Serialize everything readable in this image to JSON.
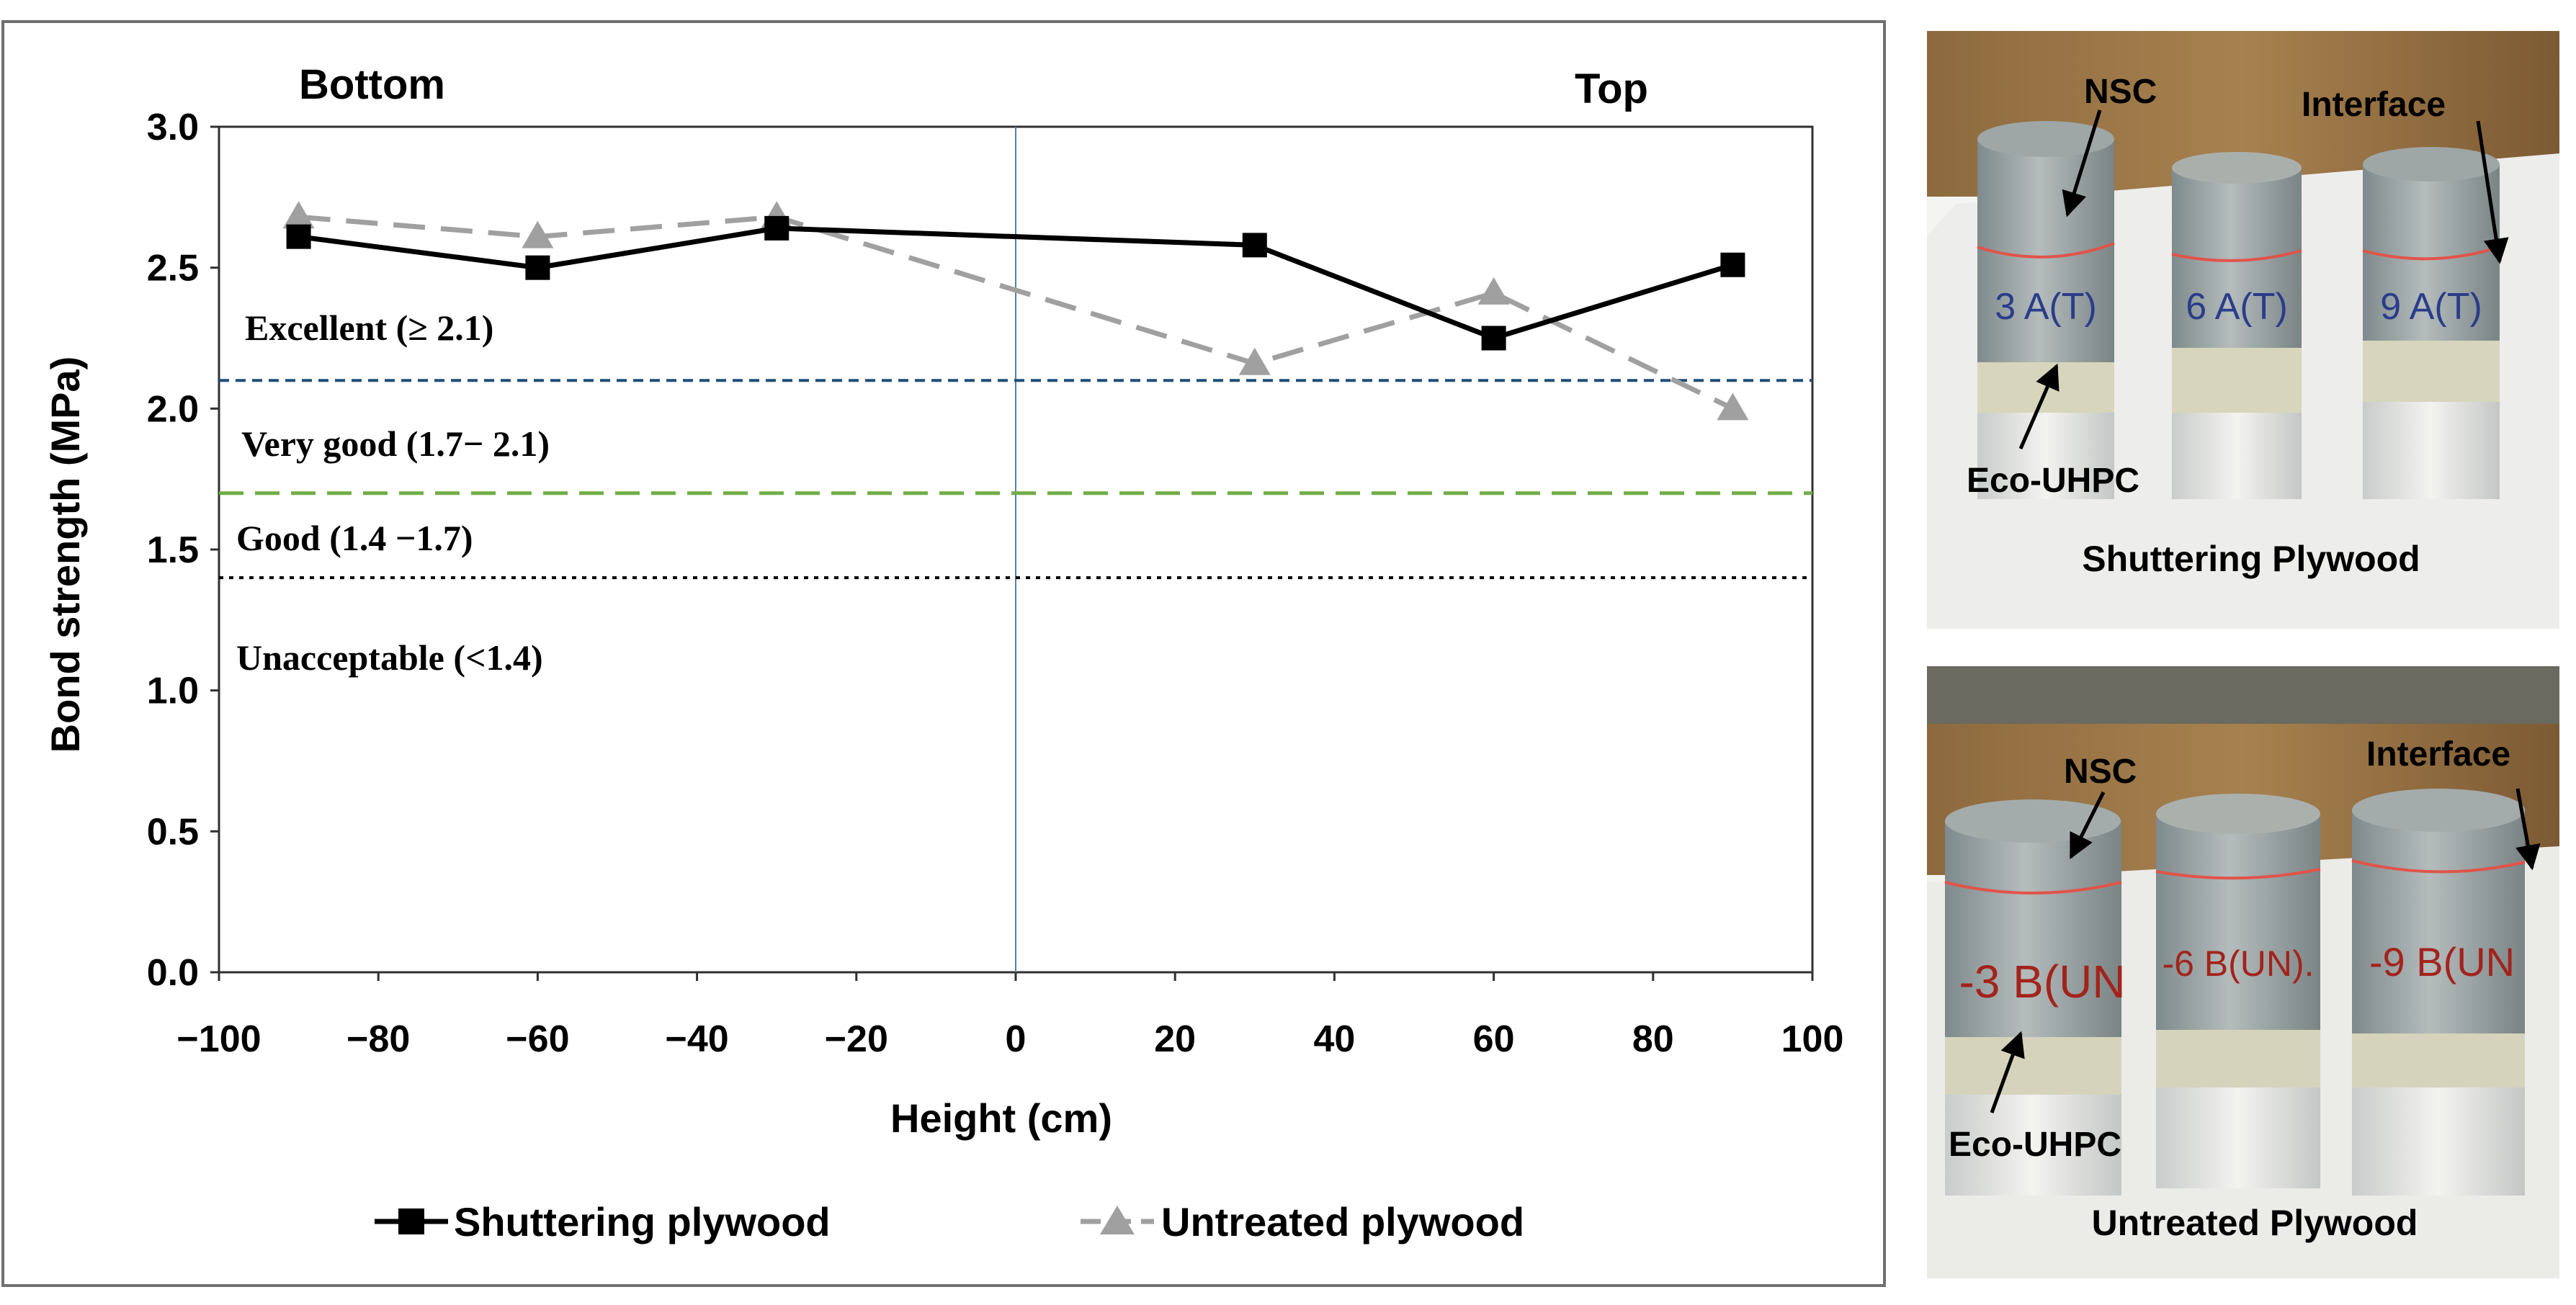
{
  "chart_data": {
    "type": "line",
    "xlabel": "Height (cm)",
    "ylabel": "Bond strength (MPa)",
    "xlim": [
      -100,
      100
    ],
    "ylim": [
      0,
      3
    ],
    "xticks": [
      "−100",
      "−80",
      "−60",
      "−40",
      "−20",
      "0",
      "20",
      "40",
      "60",
      "80",
      "100"
    ],
    "yticks": [
      "0.0",
      "0.5",
      "1.0",
      "1.5",
      "2.0",
      "2.5",
      "3.0"
    ],
    "region_labels": {
      "left": "Bottom",
      "right": "Top"
    },
    "series": [
      {
        "name": "Shuttering plywood",
        "marker": "square",
        "color": "#000000",
        "dash": "solid",
        "x": [
          -90,
          -60,
          -30,
          30,
          60,
          90
        ],
        "values": [
          2.61,
          2.5,
          2.64,
          2.58,
          2.25,
          2.51
        ]
      },
      {
        "name": "Untreated plywood",
        "marker": "triangle",
        "color": "#a0a0a0",
        "dash": "dashed",
        "x": [
          -90,
          -60,
          -30,
          30,
          60,
          90
        ],
        "values": [
          2.68,
          2.61,
          2.68,
          2.16,
          2.41,
          2.0
        ]
      }
    ],
    "thresholds": [
      {
        "value": 2.1,
        "color": "#1f4e79",
        "style": "dashed"
      },
      {
        "value": 1.7,
        "color": "#70ad47",
        "style": "longdash"
      },
      {
        "value": 1.4,
        "color": "#000000",
        "style": "dotted"
      }
    ],
    "category_labels": [
      "Excellent (≥ 2.1)",
      "Very good (1.7− 2.1)",
      "Good (1.4 −1.7)",
      "Unacceptable  (<1.4)"
    ],
    "vertical_line_x": 0,
    "legend_position": "bottom"
  },
  "photos": [
    {
      "title": "Shuttering Plywood",
      "labels": {
        "nsc": "NSC",
        "interface": "Interface",
        "eco": "Eco-UHPC"
      },
      "specimens": [
        "3 A(T)",
        "6 A(T)",
        "9 A(T)"
      ],
      "ink": "#2a3c8a"
    },
    {
      "title": "Untreated Plywood",
      "labels": {
        "nsc": "NSC",
        "interface": "Interface",
        "eco": "Eco-UHPC"
      },
      "specimens": [
        "-3 B(UN",
        "-6 B(UN).",
        "-9 B(UN"
      ],
      "ink": "#a3231c"
    }
  ]
}
